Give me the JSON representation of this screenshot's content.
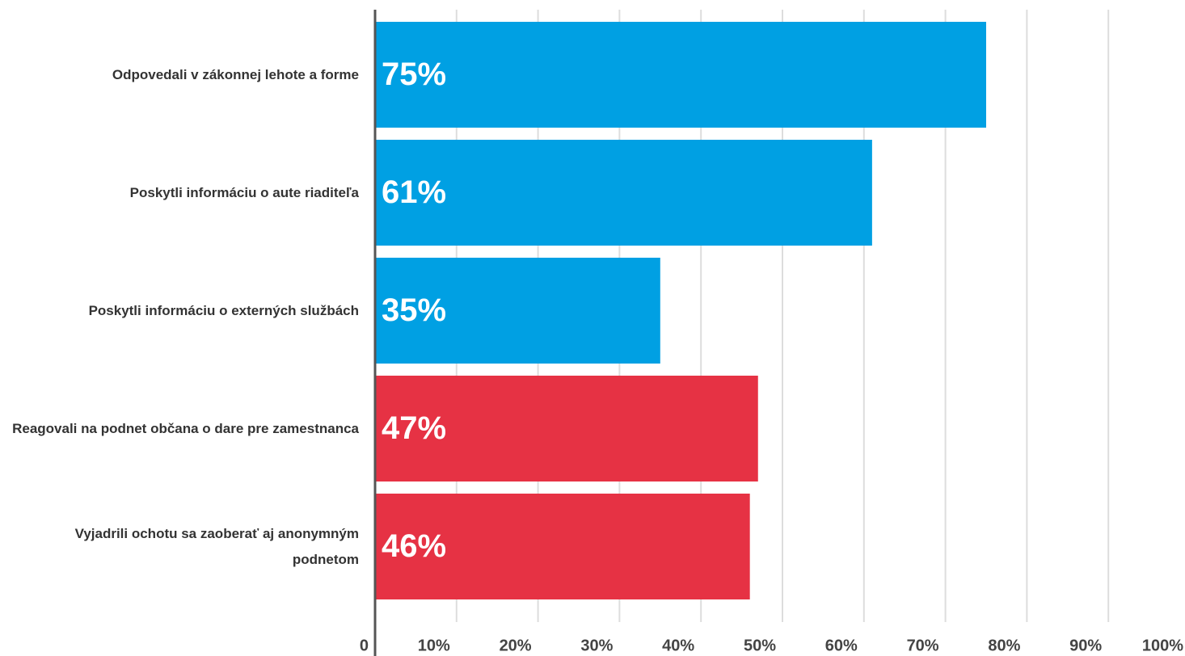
{
  "chart_data": {
    "type": "bar",
    "orientation": "horizontal",
    "categories": [
      "Odpovedali v zákonnej lehote a forme",
      "Poskytli informáciu o aute riaditeľa",
      "Poskytli informáciu o externých službách",
      "Reagovali na podnet občana o dare pre zamestnanca",
      "Vyjadrili ochotu sa zaoberať aj anonymným podnetom"
    ],
    "values": [
      75,
      61,
      35,
      47,
      46
    ],
    "value_labels": [
      "75%",
      "61%",
      "35%",
      "47%",
      "46%"
    ],
    "colors": [
      "#00a0e3",
      "#00a0e3",
      "#00a0e3",
      "#e63244",
      "#e63244"
    ],
    "xlim": [
      0,
      100
    ],
    "xticks": [
      0,
      {
        "value": 10,
        "label": "10%"
      },
      {
        "value": 20,
        "label": "20%"
      },
      {
        "value": 30,
        "label": "30%"
      },
      {
        "value": 40,
        "label": "40%"
      },
      {
        "value": 50,
        "label": "50%"
      },
      {
        "value": 60,
        "label": "60%"
      },
      {
        "value": 70,
        "label": "70%"
      },
      {
        "value": 80,
        "label": "80%"
      },
      {
        "value": 90,
        "label": "90%"
      },
      {
        "value": 100,
        "label": "100%"
      }
    ],
    "grid": true
  }
}
